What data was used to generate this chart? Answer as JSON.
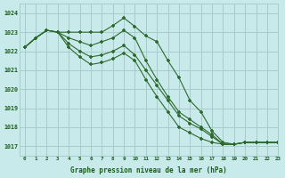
{
  "title": "Graphe pression niveau de la mer (hPa)",
  "background_color": "#c8eaea",
  "grid_color": "#a8cccc",
  "line_color": "#2d6a2d",
  "xlim": [
    -0.5,
    23
  ],
  "ylim": [
    1016.5,
    1024.5
  ],
  "yticks": [
    1017,
    1018,
    1019,
    1020,
    1021,
    1022,
    1023,
    1024
  ],
  "xtick_labels": [
    "0",
    "1",
    "2",
    "3",
    "4",
    "5",
    "6",
    "7",
    "8",
    "9",
    "10",
    "11",
    "12",
    "13",
    "14",
    "15",
    "16",
    "17",
    "18",
    "19",
    "20",
    "21",
    "22",
    "23"
  ],
  "series": [
    [
      1022.2,
      1022.7,
      1023.1,
      1023.0,
      1023.0,
      1023.0,
      1023.0,
      1023.0,
      1023.35,
      1023.75,
      1023.3,
      1022.8,
      1022.5,
      1021.5,
      1020.6,
      1019.4,
      1018.8,
      1017.8,
      1017.2,
      1017.1,
      1017.2,
      1017.2,
      1017.2,
      1017.2
    ],
    [
      1022.2,
      1022.7,
      1023.1,
      1023.0,
      1022.7,
      1022.5,
      1022.3,
      1022.5,
      1022.7,
      1023.1,
      1022.7,
      1021.5,
      1020.5,
      1019.6,
      1018.8,
      1018.4,
      1018.0,
      1017.6,
      1017.1,
      1017.1,
      1017.2,
      1017.2,
      1017.2,
      1017.2
    ],
    [
      1022.2,
      1022.7,
      1023.1,
      1023.0,
      1022.4,
      1022.0,
      1021.7,
      1021.8,
      1022.0,
      1022.3,
      1021.8,
      1021.0,
      1020.2,
      1019.4,
      1018.6,
      1018.2,
      1017.9,
      1017.5,
      1017.1,
      1017.1,
      1017.2,
      1017.2,
      1017.2,
      1017.2
    ],
    [
      1022.2,
      1022.7,
      1023.1,
      1023.0,
      1022.2,
      1021.7,
      1021.3,
      1021.4,
      1021.6,
      1021.9,
      1021.5,
      1020.5,
      1019.6,
      1018.8,
      1018.0,
      1017.7,
      1017.4,
      1017.2,
      1017.1,
      1017.1,
      1017.2,
      1017.2,
      1017.2,
      1017.2
    ]
  ]
}
